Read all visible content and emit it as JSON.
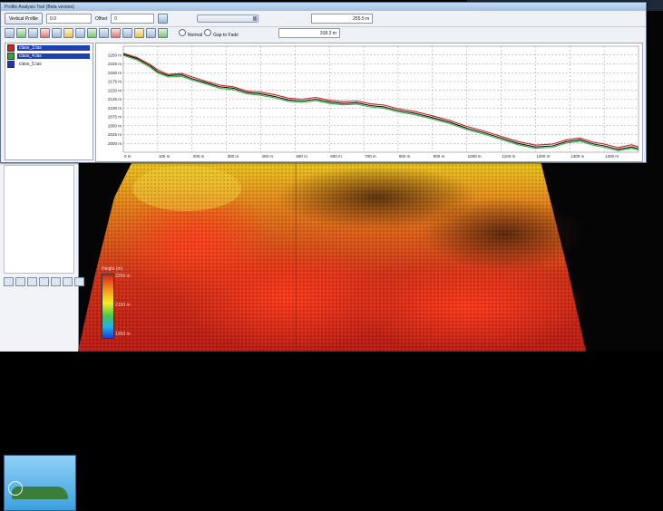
{
  "window": {
    "title": "Profile Analysis Tool (Beta version)",
    "toolbar": {
      "button_label": "Vertical Profile",
      "field1_value": "0.0",
      "field2_label": "Offset",
      "field2_value": "0",
      "readout1": "255.5 m",
      "readout2": "318.3 m"
    },
    "mode": {
      "option_normal": "Normal",
      "option_gap": "Gap to Fade"
    },
    "layers": [
      {
        "name": "class_3.las",
        "color": "#d32018",
        "selected": true
      },
      {
        "name": "class_4.las",
        "color": "#2fa836",
        "selected": true
      },
      {
        "name": "class_5.las",
        "color": "#1f2fd0",
        "selected": false
      }
    ]
  },
  "chart_data": {
    "type": "line",
    "x_unit": "m",
    "y_unit": "m",
    "xlim": [
      0,
      1500
    ],
    "ylim": [
      1975,
      2275
    ],
    "x_ticks": [
      0,
      100,
      200,
      300,
      400,
      500,
      600,
      700,
      800,
      900,
      1000,
      1100,
      1200,
      1300,
      1400
    ],
    "x_tick_labels": [
      "0 m",
      "100 m",
      "200 m",
      "300 m",
      "400 m",
      "500 m",
      "600 m",
      "700 m",
      "800 m",
      "900 m",
      "1000 m",
      "1100 m",
      "1200 m",
      "1300 m",
      "1400 m"
    ],
    "y_ticks": [
      2000,
      2025,
      2050,
      2075,
      2100,
      2125,
      2150,
      2175,
      2200,
      2225,
      2250
    ],
    "y_tick_labels": [
      "2000 m",
      "2025 m",
      "2050 m",
      "2075 m",
      "2100 m",
      "2125 m",
      "2150 m",
      "2175 m",
      "2200 m",
      "2225 m",
      "2250 m"
    ],
    "grid": true,
    "series": [
      {
        "color": "#c0201a",
        "x": [
          0,
          40,
          80,
          100,
          130,
          170,
          200,
          240,
          280,
          320,
          360,
          400,
          440,
          480,
          520,
          560,
          600,
          640,
          680,
          720,
          760,
          800,
          850,
          900,
          950,
          1000,
          1050,
          1100,
          1150,
          1200,
          1250,
          1290,
          1330,
          1370,
          1400,
          1440,
          1480,
          1500
        ],
        "y": [
          2255,
          2243,
          2222,
          2208,
          2195,
          2198,
          2188,
          2176,
          2165,
          2160,
          2148,
          2145,
          2138,
          2128,
          2125,
          2130,
          2122,
          2118,
          2120,
          2112,
          2108,
          2098,
          2090,
          2078,
          2065,
          2048,
          2035,
          2020,
          2005,
          1995,
          1998,
          2010,
          2015,
          2003,
          1998,
          1988,
          1996,
          1990
        ]
      },
      {
        "color": "#111111",
        "x": [
          0,
          40,
          80,
          100,
          130,
          170,
          200,
          240,
          280,
          320,
          360,
          400,
          440,
          480,
          520,
          560,
          600,
          640,
          680,
          720,
          760,
          800,
          850,
          900,
          950,
          1000,
          1050,
          1100,
          1150,
          1200,
          1250,
          1290,
          1330,
          1370,
          1400,
          1440,
          1480,
          1500
        ],
        "y": [
          2252,
          2240,
          2218,
          2203,
          2192,
          2194,
          2183,
          2172,
          2160,
          2156,
          2144,
          2140,
          2133,
          2123,
          2120,
          2125,
          2117,
          2113,
          2115,
          2107,
          2103,
          2093,
          2085,
          2073,
          2060,
          2043,
          2030,
          2015,
          2000,
          1990,
          1993,
          2005,
          2010,
          1998,
          1993,
          1983,
          1990,
          1985
        ]
      },
      {
        "color": "#36b03a",
        "x": [
          0,
          40,
          80,
          100,
          130,
          170,
          200,
          240,
          280,
          320,
          360,
          400,
          440,
          480,
          520,
          560,
          600,
          640,
          680,
          720,
          760,
          800,
          850,
          900,
          950,
          1000,
          1050,
          1100,
          1150,
          1200,
          1250,
          1290,
          1330,
          1370,
          1400,
          1440,
          1480,
          1500
        ],
        "y": [
          2249,
          2236,
          2214,
          2199,
          2188,
          2190,
          2179,
          2168,
          2156,
          2152,
          2140,
          2136,
          2129,
          2119,
          2116,
          2121,
          2113,
          2109,
          2111,
          2103,
          2099,
          2089,
          2081,
          2069,
          2056,
          2039,
          2026,
          2011,
          1996,
          1986,
          1989,
          2001,
          2006,
          1994,
          1989,
          1979,
          1986,
          1981
        ]
      }
    ]
  },
  "legend": {
    "title": "Height (m)",
    "labels": [
      "2256 m",
      "2100 m",
      "1950 m"
    ]
  }
}
